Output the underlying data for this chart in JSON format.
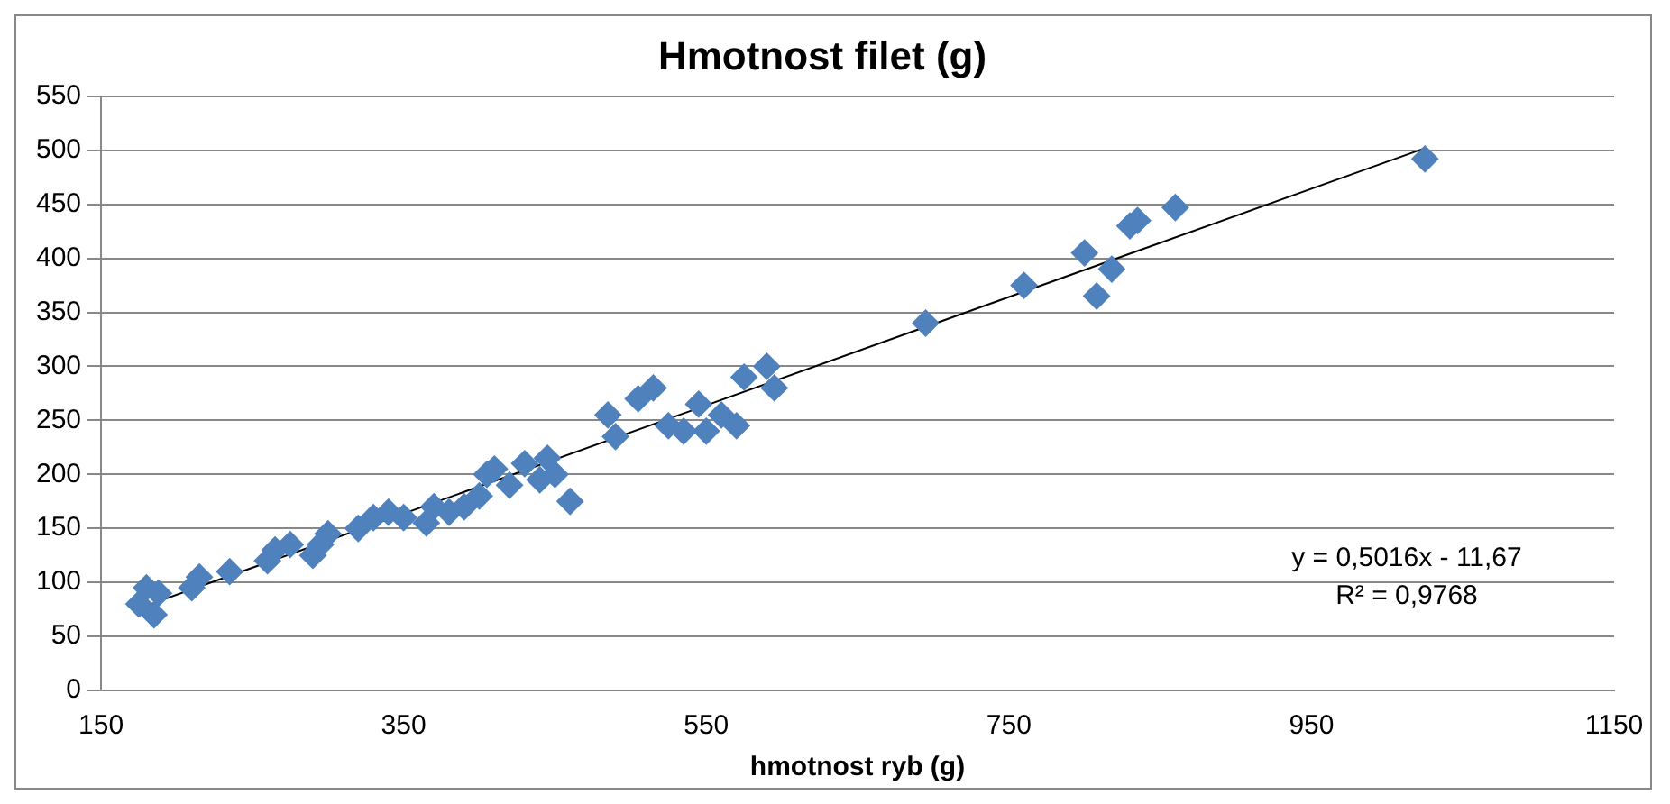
{
  "chart_data": {
    "type": "scatter",
    "title": "Hmotnost filet (g)",
    "xlabel": "hmotnost ryb (g)",
    "xlim": [
      150,
      1150
    ],
    "xticks": [
      150,
      350,
      550,
      750,
      950,
      1150
    ],
    "ylim": [
      0,
      550
    ],
    "yticks": [
      0,
      50,
      100,
      150,
      200,
      250,
      300,
      350,
      400,
      450,
      500,
      550
    ],
    "grid": "y",
    "legend": false,
    "marker": "diamond",
    "annotations": [
      "y = 0,5016x - 11,67",
      "R² = 0,9768"
    ],
    "series": [
      {
        "color": "#4f81bd",
        "x": [
          175,
          180,
          185,
          188,
          210,
          215,
          235,
          260,
          265,
          275,
          290,
          295,
          300,
          320,
          330,
          340,
          350,
          365,
          370,
          380,
          390,
          400,
          405,
          410,
          420,
          430,
          440,
          445,
          450,
          460,
          485,
          490,
          505,
          515,
          525,
          535,
          545,
          550,
          560,
          570,
          575,
          590,
          595,
          695,
          760,
          800,
          808,
          818,
          830,
          835,
          860,
          1025
        ],
        "values": [
          80,
          95,
          70,
          90,
          95,
          105,
          110,
          120,
          130,
          135,
          125,
          135,
          145,
          150,
          160,
          165,
          160,
          155,
          170,
          165,
          170,
          180,
          200,
          205,
          190,
          210,
          195,
          215,
          200,
          175,
          255,
          235,
          270,
          280,
          245,
          240,
          265,
          240,
          255,
          245,
          290,
          300,
          280,
          340,
          375,
          405,
          365,
          390,
          430,
          435,
          447,
          492
        ]
      },
      {
        "type": "line",
        "marker": "none",
        "color": "#000000",
        "x": [
          175,
          1025
        ],
        "values": [
          76,
          502
        ]
      }
    ]
  }
}
